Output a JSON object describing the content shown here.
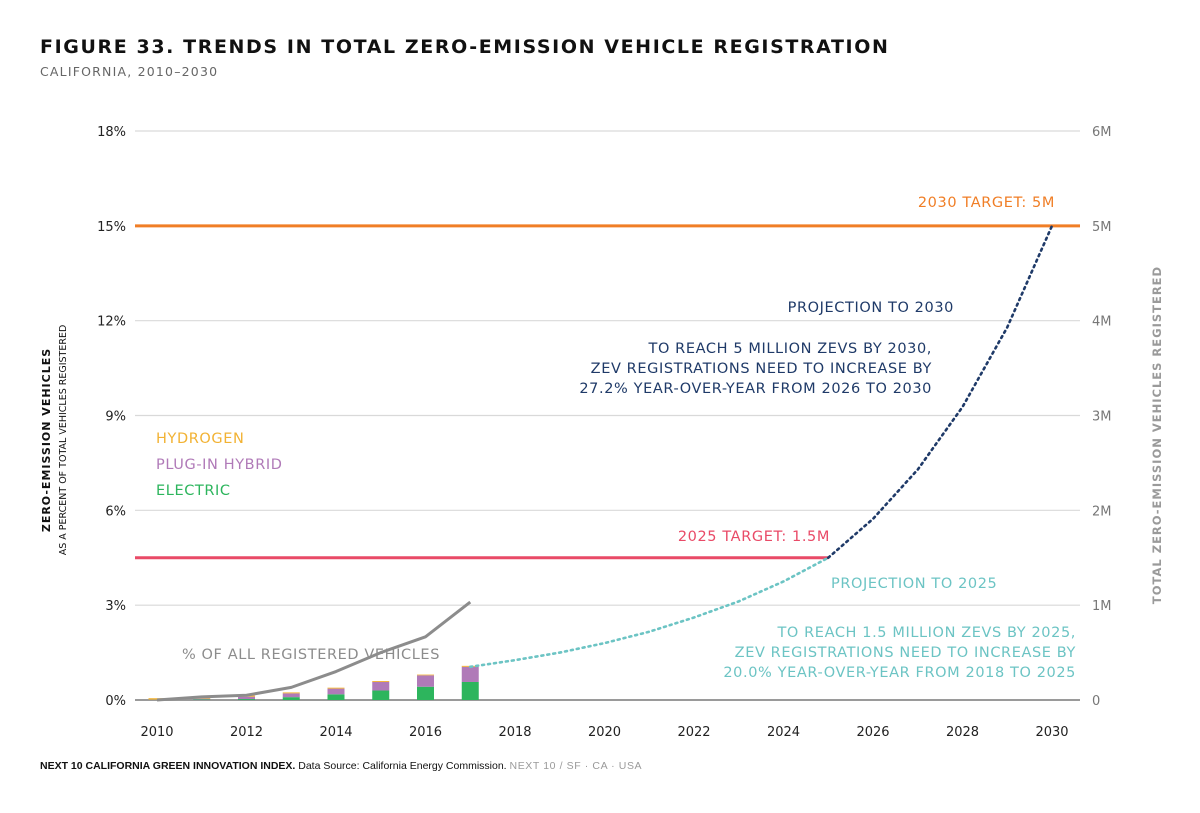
{
  "header": {
    "title": "FIGURE 33. TRENDS IN TOTAL ZERO-EMISSION VEHICLE REGISTRATION",
    "subtitle": "CALIFORNIA, 2010–2030"
  },
  "footer": {
    "source_bold": "NEXT 10 CALIFORNIA GREEN INNOVATION INDEX.",
    "source_text": "Data Source: California Energy Commission.",
    "brand": "NEXT 10  /  SF · CA · USA"
  },
  "chart_data": {
    "type": "bar",
    "title": "FIGURE 33. TRENDS IN TOTAL ZERO-EMISSION VEHICLE REGISTRATION",
    "subtitle": "CALIFORNIA, 2010–2030",
    "ylabel_left": "ZERO-EMISSION VEHICLES",
    "ylabel_left_sub": "AS A PERCENT OF TOTAL VEHICLES REGISTERED",
    "ylabel_right": "TOTAL ZERO-EMISSION VEHICLES REGISTERED",
    "xlim": [
      2010,
      2030
    ],
    "ylim_left": [
      0,
      18
    ],
    "ylim_right": [
      0,
      6
    ],
    "x_ticks": [
      "2010",
      "2012",
      "2014",
      "2016",
      "2018",
      "2020",
      "2022",
      "2024",
      "2026",
      "2028",
      "2030"
    ],
    "y_ticks_left": [
      "0%",
      "3%",
      "6%",
      "9%",
      "12%",
      "15%",
      "18%"
    ],
    "y_ticks_right": [
      "0",
      "1M",
      "2M",
      "3M",
      "4M",
      "5M",
      "6M"
    ],
    "grid": true,
    "legend_position": "middle-left",
    "colors": {
      "hydrogen": "#f2b233",
      "plug_in_hybrid": "#b07ab8",
      "electric": "#2db55d",
      "pct_line": "#8c8c8c",
      "target_2030": "#f07e26",
      "target_2025": "#e94a67",
      "proj_2030": "#1f3a68",
      "proj_2025": "#6cc4c4",
      "grid": "#d9d9d9",
      "axis_text": "#777777"
    },
    "years": [
      2010,
      2011,
      2012,
      2013,
      2014,
      2015,
      2016,
      2017
    ],
    "series": [
      {
        "name": "ELECTRIC",
        "values_millions": [
          0.002,
          0.006,
          0.01,
          0.03,
          0.06,
          0.1,
          0.14,
          0.19
        ]
      },
      {
        "name": "PLUG-IN HYBRID",
        "values_millions": [
          0.002,
          0.008,
          0.025,
          0.04,
          0.06,
          0.09,
          0.12,
          0.16
        ]
      },
      {
        "name": "HYDROGEN",
        "values_millions": [
          0.015,
          0.012,
          0.012,
          0.01,
          0.01,
          0.01,
          0.008,
          0.01
        ]
      }
    ],
    "pct_line": {
      "label": "% OF ALL REGISTERED VEHICLES",
      "x": [
        2010,
        2011,
        2012,
        2013,
        2014,
        2015,
        2016,
        2017
      ],
      "y_pct": [
        0.0,
        0.1,
        0.15,
        0.4,
        0.9,
        1.5,
        2.0,
        3.1
      ]
    },
    "projection_2025": {
      "label": "PROJECTION TO 2025",
      "note": [
        "TO REACH 1.5 MILLION ZEVS BY 2025,",
        "ZEV REGISTRATIONS NEED TO INCREASE BY",
        "20.0% YEAR-OVER-YEAR FROM 2018 TO 2025"
      ],
      "x": [
        2017,
        2018,
        2019,
        2020,
        2021,
        2022,
        2023,
        2024,
        2025
      ],
      "y_millions": [
        0.35,
        0.42,
        0.5,
        0.6,
        0.72,
        0.87,
        1.04,
        1.25,
        1.5
      ]
    },
    "projection_2030": {
      "label": "PROJECTION TO 2030",
      "note": [
        "TO REACH 5 MILLION ZEVS BY 2030,",
        "ZEV REGISTRATIONS NEED TO INCREASE BY",
        "27.2% YEAR-OVER-YEAR FROM 2026 TO 2030"
      ],
      "x": [
        2025,
        2026,
        2027,
        2028,
        2029,
        2030
      ],
      "y_millions": [
        1.5,
        1.91,
        2.43,
        3.09,
        3.93,
        5.0
      ]
    },
    "targets": [
      {
        "label": "2030 TARGET: 5M",
        "value_millions": 5.0,
        "x_start": 2010,
        "x_end": 2030
      },
      {
        "label": "2025 TARGET: 1.5M",
        "value_millions": 1.5,
        "x_start": 2010,
        "x_end": 2025
      }
    ],
    "legend": [
      "HYDROGEN",
      "PLUG-IN HYBRID",
      "ELECTRIC"
    ]
  }
}
